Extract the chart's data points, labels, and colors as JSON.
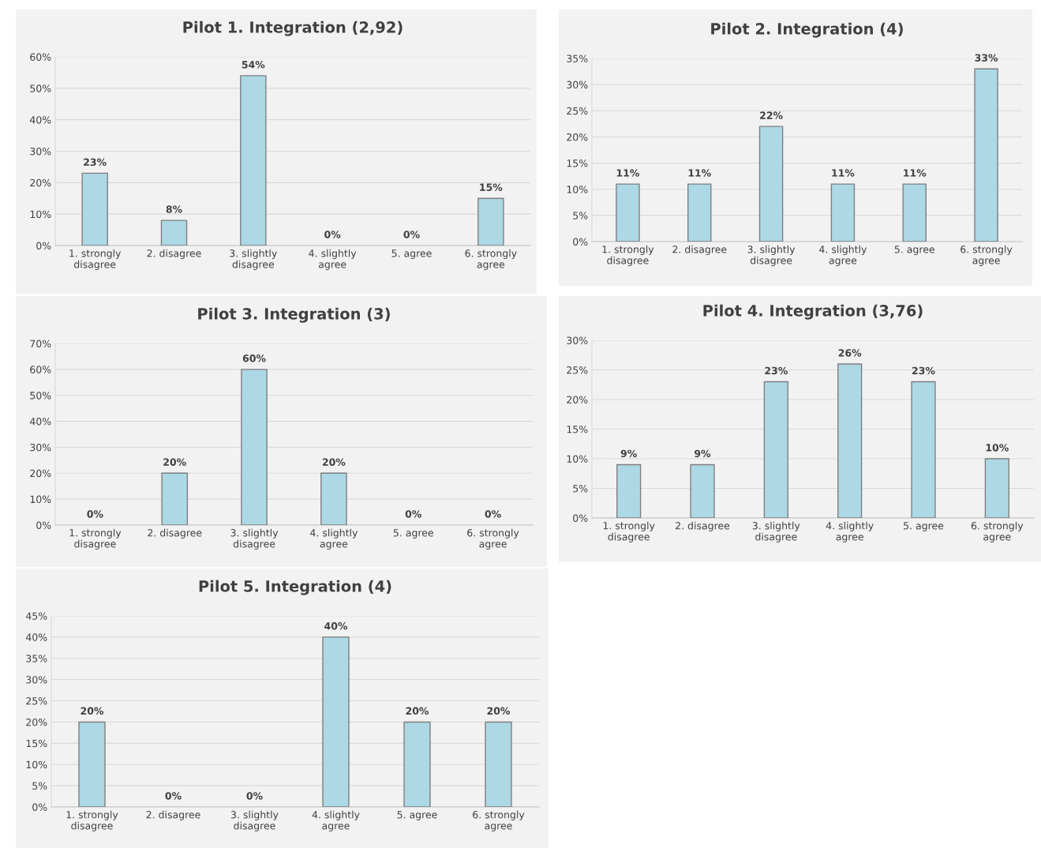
{
  "chart_data": [
    {
      "type": "bar",
      "title": "Pilot 1. Integration (2,92)",
      "categories": [
        "1. strongly\ndisagree",
        "2. disagree",
        "3. slightly\ndisagree",
        "4. slightly\nagree",
        "5. agree",
        "6. strongly\nagree"
      ],
      "values": [
        23,
        8,
        54,
        0,
        0,
        15
      ],
      "value_labels": [
        "23%",
        "8%",
        "54%",
        "0%",
        "0%",
        "15%"
      ],
      "color": "#add8e6",
      "ylim": [
        0,
        60
      ],
      "yticks": [
        {
          "value": 0,
          "label": "0%"
        },
        {
          "value": 10,
          "label": "10%"
        },
        {
          "value": 20,
          "label": "20%"
        },
        {
          "value": 30,
          "label": "30%"
        },
        {
          "value": 40,
          "label": "40%"
        },
        {
          "value": 50,
          "label": "50%"
        },
        {
          "value": 60,
          "label": "60%"
        }
      ],
      "grid": "y"
    },
    {
      "type": "bar",
      "title": "Pilot 2. Integration (4)",
      "categories": [
        "1. strongly\ndisagree",
        "2. disagree",
        "3. slightly\ndisagree",
        "4. slightly\nagree",
        "5. agree",
        "6. strongly\nagree"
      ],
      "values": [
        11,
        11,
        22,
        11,
        11,
        33
      ],
      "value_labels": [
        "11%",
        "11%",
        "22%",
        "11%",
        "11%",
        "33%"
      ],
      "color": "#add8e6",
      "ylim": [
        0,
        35
      ],
      "yticks": [
        {
          "value": 0,
          "label": "0%"
        },
        {
          "value": 5,
          "label": "5%"
        },
        {
          "value": 10,
          "label": "10%"
        },
        {
          "value": 15,
          "label": "15%"
        },
        {
          "value": 20,
          "label": "20%"
        },
        {
          "value": 25,
          "label": "25%"
        },
        {
          "value": 30,
          "label": "30%"
        },
        {
          "value": 35,
          "label": "35%"
        }
      ],
      "grid": "y"
    },
    {
      "type": "bar",
      "title": "Pilot 3. Integration (3)",
      "categories": [
        "1. strongly\ndisagree",
        "2. disagree",
        "3. slightly\ndisagree",
        "4. slightly\nagree",
        "5. agree",
        "6. strongly\nagree"
      ],
      "values": [
        0,
        20,
        60,
        20,
        0,
        0
      ],
      "value_labels": [
        "0%",
        "20%",
        "60%",
        "20%",
        "0%",
        "0%"
      ],
      "color": "#add8e6",
      "ylim": [
        0,
        70
      ],
      "yticks": [
        {
          "value": 0,
          "label": "0%"
        },
        {
          "value": 10,
          "label": "10%"
        },
        {
          "value": 20,
          "label": "20%"
        },
        {
          "value": 30,
          "label": "30%"
        },
        {
          "value": 40,
          "label": "40%"
        },
        {
          "value": 50,
          "label": "50%"
        },
        {
          "value": 60,
          "label": "60%"
        },
        {
          "value": 70,
          "label": "70%"
        }
      ],
      "grid": "y"
    },
    {
      "type": "bar",
      "title": "Pilot 4. Integration (3,76)",
      "categories": [
        "1. strongly\ndisagree",
        "2. disagree",
        "3. slightly\ndisagree",
        "4. slightly\nagree",
        "5. agree",
        "6. strongly\nagree"
      ],
      "values": [
        9,
        9,
        23,
        26,
        23,
        10
      ],
      "value_labels": [
        "9%",
        "9%",
        "23%",
        "26%",
        "23%",
        "10%"
      ],
      "color": "#add8e6",
      "ylim": [
        0,
        30
      ],
      "yticks": [
        {
          "value": 0,
          "label": "0%"
        },
        {
          "value": 5,
          "label": "5%"
        },
        {
          "value": 10,
          "label": "10%"
        },
        {
          "value": 15,
          "label": "15%"
        },
        {
          "value": 20,
          "label": "20%"
        },
        {
          "value": 25,
          "label": "25%"
        },
        {
          "value": 30,
          "label": "30%"
        }
      ],
      "grid": "y"
    },
    {
      "type": "bar",
      "title": "Pilot 5. Integration (4)",
      "categories": [
        "1. strongly\ndisagree",
        "2. disagree",
        "3. slightly\ndisagree",
        "4. slightly\nagree",
        "5. agree",
        "6. strongly\nagree"
      ],
      "values": [
        20,
        0,
        0,
        40,
        20,
        20
      ],
      "value_labels": [
        "20%",
        "0%",
        "0%",
        "40%",
        "20%",
        "20%"
      ],
      "color": "#add8e6",
      "ylim": [
        0,
        45
      ],
      "yticks": [
        {
          "value": 0,
          "label": "0%"
        },
        {
          "value": 5,
          "label": "5%"
        },
        {
          "value": 10,
          "label": "10%"
        },
        {
          "value": 15,
          "label": "15%"
        },
        {
          "value": 20,
          "label": "20%"
        },
        {
          "value": 25,
          "label": "25%"
        },
        {
          "value": 30,
          "label": "30%"
        },
        {
          "value": 35,
          "label": "35%"
        },
        {
          "value": 40,
          "label": "40%"
        },
        {
          "value": 45,
          "label": "45%"
        }
      ],
      "grid": "y"
    }
  ]
}
